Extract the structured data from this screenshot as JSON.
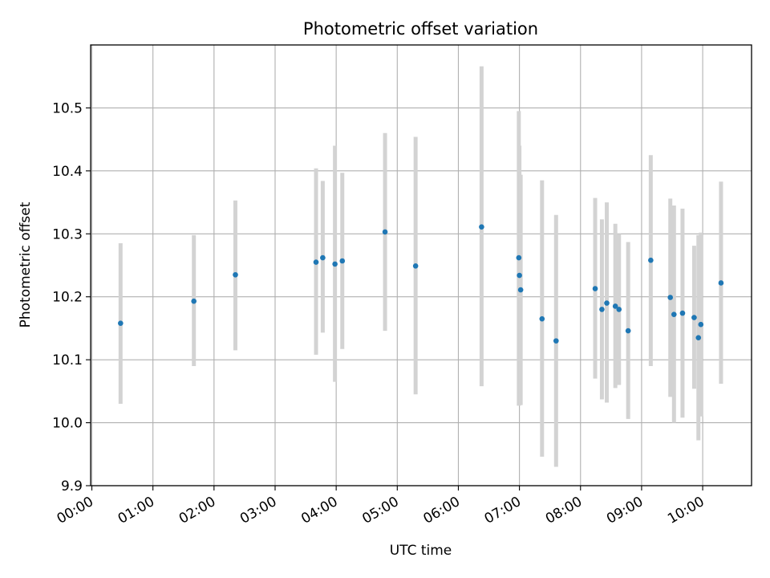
{
  "chart_data": {
    "type": "scatter",
    "title": "Photometric offset variation",
    "xlabel": "UTC time",
    "ylabel": "Photometric offset",
    "x_unit": "hours UTC",
    "xlim": [
      -0.02,
      10.8
    ],
    "ylim": [
      9.9,
      10.6
    ],
    "x_ticks": [
      0,
      1,
      2,
      3,
      4,
      5,
      6,
      7,
      8,
      9,
      10
    ],
    "x_tick_labels": [
      "00:00",
      "01:00",
      "02:00",
      "03:00",
      "04:00",
      "05:00",
      "06:00",
      "07:00",
      "08:00",
      "09:00",
      "10:00"
    ],
    "y_ticks": [
      9.9,
      10.0,
      10.1,
      10.2,
      10.3,
      10.4,
      10.5
    ],
    "y_tick_labels": [
      "9.9",
      "10.0",
      "10.1",
      "10.2",
      "10.3",
      "10.4",
      "10.5"
    ],
    "grid": true,
    "marker_color": "#1f77b4",
    "errorbar_color": "#d3d3d3",
    "points": [
      {
        "x": 0.47,
        "y": 10.158,
        "ylo": 10.03,
        "yhi": 10.285
      },
      {
        "x": 1.67,
        "y": 10.193,
        "ylo": 10.09,
        "yhi": 10.298
      },
      {
        "x": 2.35,
        "y": 10.235,
        "ylo": 10.115,
        "yhi": 10.353
      },
      {
        "x": 3.67,
        "y": 10.255,
        "ylo": 10.108,
        "yhi": 10.404
      },
      {
        "x": 3.78,
        "y": 10.262,
        "ylo": 10.143,
        "yhi": 10.384
      },
      {
        "x": 3.98,
        "y": 10.252,
        "ylo": 10.065,
        "yhi": 10.44
      },
      {
        "x": 4.1,
        "y": 10.257,
        "ylo": 10.117,
        "yhi": 10.397
      },
      {
        "x": 4.8,
        "y": 10.303,
        "ylo": 10.146,
        "yhi": 10.46
      },
      {
        "x": 5.3,
        "y": 10.249,
        "ylo": 10.045,
        "yhi": 10.454
      },
      {
        "x": 6.38,
        "y": 10.311,
        "ylo": 10.058,
        "yhi": 10.566
      },
      {
        "x": 6.99,
        "y": 10.262,
        "ylo": 10.027,
        "yhi": 10.495
      },
      {
        "x": 7.0,
        "y": 10.234,
        "ylo": 10.028,
        "yhi": 10.44
      },
      {
        "x": 7.02,
        "y": 10.211,
        "ylo": 10.028,
        "yhi": 10.394
      },
      {
        "x": 7.37,
        "y": 10.165,
        "ylo": 9.946,
        "yhi": 10.385
      },
      {
        "x": 7.6,
        "y": 10.13,
        "ylo": 9.93,
        "yhi": 10.33
      },
      {
        "x": 8.24,
        "y": 10.213,
        "ylo": 10.07,
        "yhi": 10.357
      },
      {
        "x": 8.35,
        "y": 10.18,
        "ylo": 10.037,
        "yhi": 10.323
      },
      {
        "x": 8.43,
        "y": 10.19,
        "ylo": 10.032,
        "yhi": 10.35
      },
      {
        "x": 8.57,
        "y": 10.185,
        "ylo": 10.055,
        "yhi": 10.316
      },
      {
        "x": 8.63,
        "y": 10.18,
        "ylo": 10.06,
        "yhi": 10.3
      },
      {
        "x": 8.78,
        "y": 10.146,
        "ylo": 10.006,
        "yhi": 10.287
      },
      {
        "x": 9.15,
        "y": 10.258,
        "ylo": 10.09,
        "yhi": 10.425
      },
      {
        "x": 9.47,
        "y": 10.199,
        "ylo": 10.041,
        "yhi": 10.356
      },
      {
        "x": 9.53,
        "y": 10.172,
        "ylo": 10.0,
        "yhi": 10.345
      },
      {
        "x": 9.67,
        "y": 10.174,
        "ylo": 10.008,
        "yhi": 10.34
      },
      {
        "x": 9.86,
        "y": 10.167,
        "ylo": 10.054,
        "yhi": 10.281
      },
      {
        "x": 9.93,
        "y": 10.135,
        "ylo": 9.972,
        "yhi": 10.298
      },
      {
        "x": 9.97,
        "y": 10.156,
        "ylo": 10.01,
        "yhi": 10.302
      },
      {
        "x": 10.3,
        "y": 10.222,
        "ylo": 10.062,
        "yhi": 10.383
      }
    ]
  }
}
